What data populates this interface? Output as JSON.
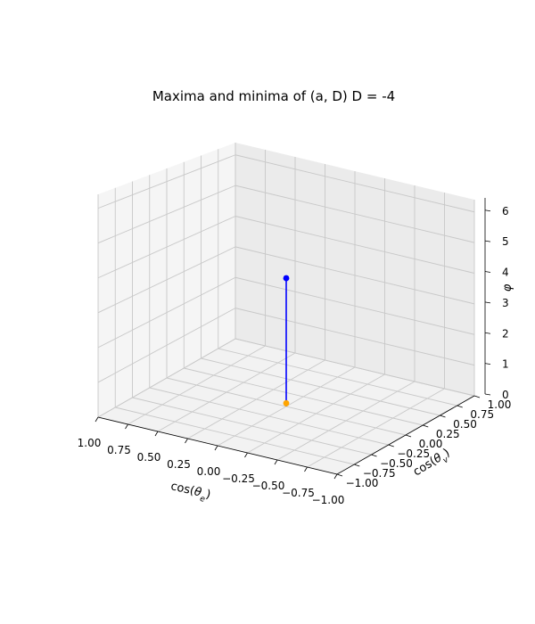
{
  "chart_data": {
    "type": "scatter3d",
    "title": "Maxima and minima of (a, D) D = -4",
    "xlabel": "cos(θ_e)",
    "ylabel": "cos(θ_v)",
    "zlabel": "φ",
    "xlim": [
      1.0,
      -1.0
    ],
    "ylim": [
      -1.0,
      1.0
    ],
    "zlim": [
      0,
      6.28
    ],
    "x_ticks": [
      "1.00",
      "0.75",
      "0.50",
      "0.25",
      "0.00",
      "−0.25",
      "−0.50",
      "−0.75",
      "−1.00"
    ],
    "y_ticks": [
      "−1.00",
      "−0.75",
      "−0.50",
      "−0.25",
      "0.00",
      "0.25",
      "0.50",
      "0.75",
      "1.00"
    ],
    "z_ticks": [
      "0",
      "1",
      "2",
      "3",
      "4",
      "5",
      "6"
    ],
    "grid": true,
    "series": [
      {
        "color": "#0000ff",
        "x": [
          0.0
        ],
        "y": [
          0.0
        ],
        "z": [
          3.92
        ],
        "stem_from": 0
      },
      {
        "color": "#ffa500",
        "x": [
          0.0
        ],
        "y": [
          0.0
        ],
        "z": [
          0.1
        ],
        "stem_from": 0
      }
    ]
  }
}
